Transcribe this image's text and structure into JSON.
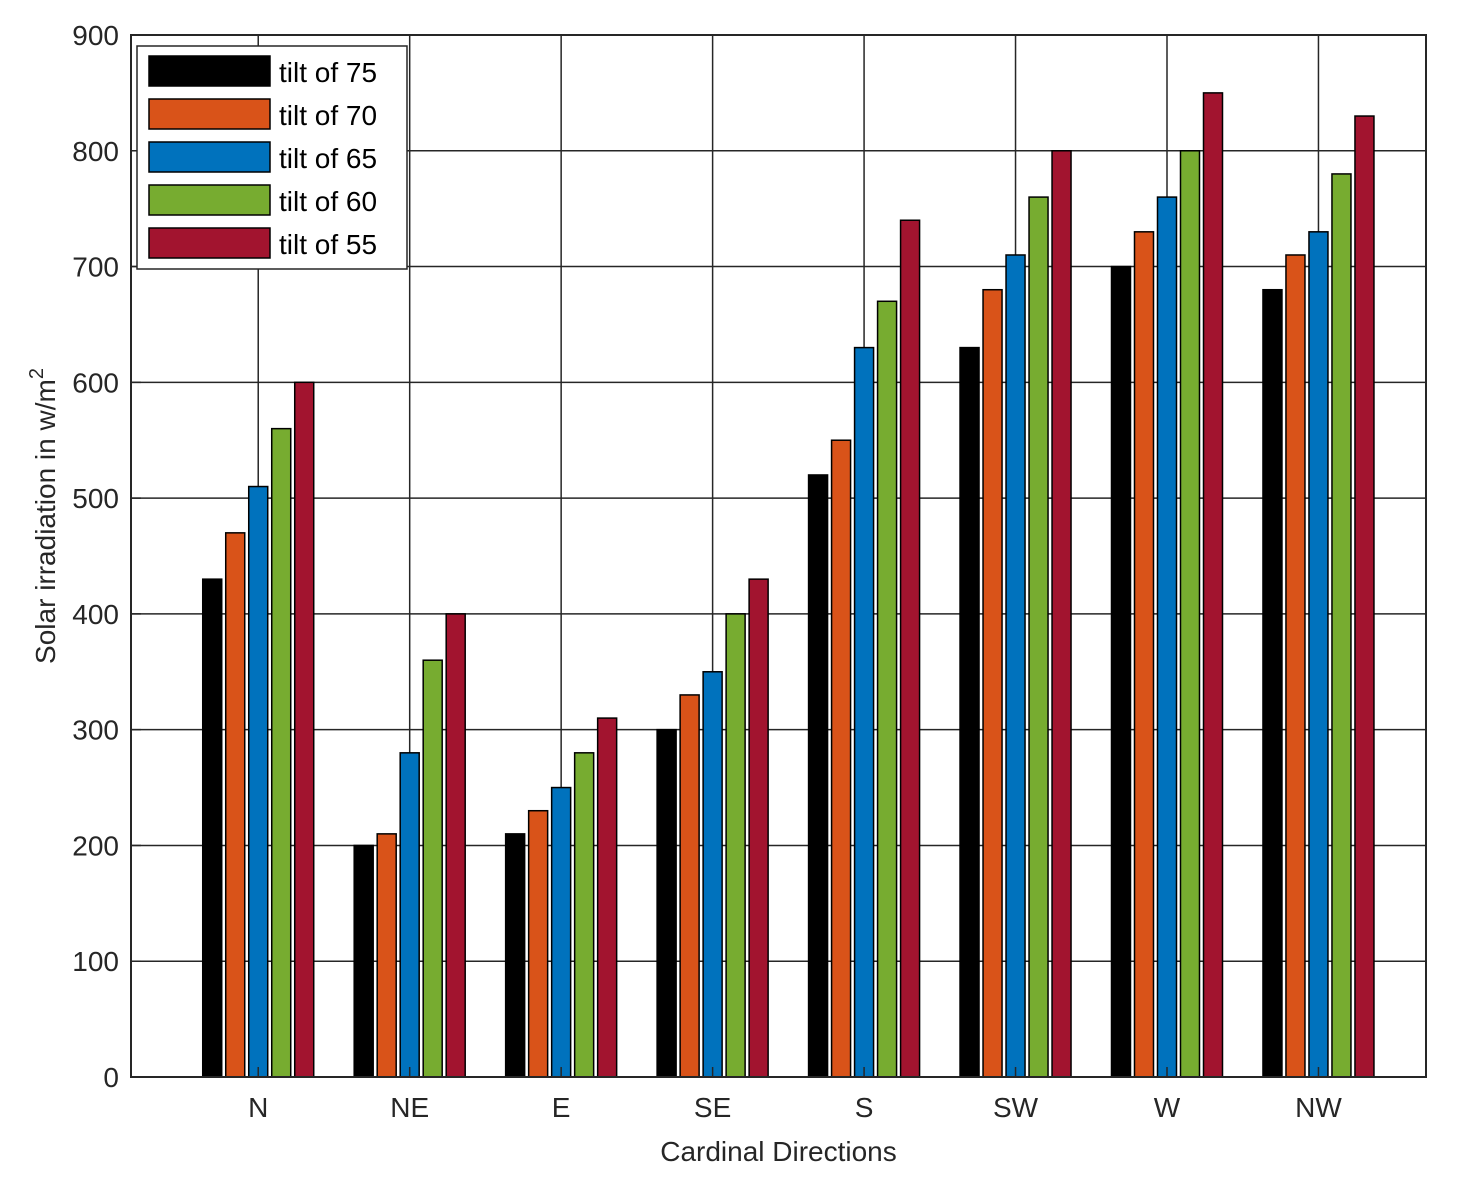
{
  "chart_data": {
    "type": "bar",
    "categories": [
      "N",
      "NE",
      "E",
      "SE",
      "S",
      "SW",
      "W",
      "NW"
    ],
    "series": [
      {
        "name": "tilt of 75",
        "color": "#000000",
        "values": [
          430,
          200,
          210,
          300,
          520,
          630,
          700,
          680
        ]
      },
      {
        "name": "tilt of 70",
        "color": "#d95319",
        "values": [
          470,
          210,
          230,
          330,
          550,
          680,
          730,
          710
        ]
      },
      {
        "name": "tilt of 65",
        "color": "#0072bd",
        "values": [
          510,
          280,
          250,
          350,
          630,
          710,
          760,
          730
        ]
      },
      {
        "name": "tilt of 60",
        "color": "#77ac30",
        "values": [
          560,
          360,
          280,
          400,
          670,
          760,
          800,
          780
        ]
      },
      {
        "name": "tilt of 55",
        "color": "#a2142f",
        "values": [
          600,
          400,
          310,
          430,
          740,
          800,
          850,
          830
        ]
      }
    ],
    "title": "",
    "xlabel": "Cardinal Directions",
    "ylabel": "Solar irradiation in w/m",
    "ylabel_superscript": "2",
    "ylim": [
      0,
      900
    ],
    "yticks": [
      "0",
      "100",
      "200",
      "300",
      "400",
      "500",
      "600",
      "700",
      "800",
      "900"
    ],
    "grid": true,
    "legend_position": "top-left"
  }
}
